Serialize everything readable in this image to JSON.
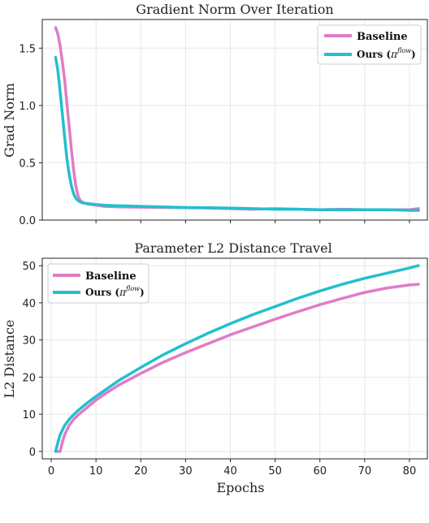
{
  "colors": {
    "baseline": "#e07cc6",
    "ours": "#22bfcf"
  },
  "chart_data": [
    {
      "type": "line",
      "title": "Gradient Norm Over Iteration",
      "xlabel": "",
      "ylabel": "Grad Norm",
      "xlim": [
        -2,
        84
      ],
      "ylim": [
        0,
        1.75
      ],
      "xticks": [
        10,
        20,
        30,
        40,
        50,
        60,
        70,
        80
      ],
      "xticklabels_visible": false,
      "yticks": [
        0.0,
        0.5,
        1.0,
        1.5
      ],
      "yticklabels": [
        "0.0",
        "0.5",
        "1.0",
        "1.5"
      ],
      "legend_position": "top-right",
      "grid": true,
      "series": [
        {
          "name": "Baseline",
          "color_key": "baseline",
          "x": [
            1,
            1.5,
            2,
            2.5,
            3,
            3.5,
            4,
            4.5,
            5,
            5.5,
            6,
            6.5,
            7,
            8,
            9,
            10,
            12,
            15,
            20,
            25,
            30,
            35,
            40,
            45,
            50,
            55,
            60,
            65,
            70,
            75,
            80,
            82
          ],
          "y": [
            1.68,
            1.62,
            1.52,
            1.38,
            1.22,
            1.02,
            0.82,
            0.62,
            0.44,
            0.3,
            0.21,
            0.17,
            0.155,
            0.14,
            0.135,
            0.13,
            0.12,
            0.115,
            0.113,
            0.11,
            0.108,
            0.105,
            0.1,
            0.095,
            0.1,
            0.095,
            0.09,
            0.095,
            0.09,
            0.09,
            0.09,
            0.1
          ]
        },
        {
          "name": "Ours (πᶠˡᵒʷ)",
          "color_key": "ours",
          "x": [
            1,
            1.5,
            2,
            2.5,
            3,
            3.5,
            4,
            4.5,
            5,
            5.5,
            6,
            6.5,
            7,
            8,
            9,
            10,
            12,
            15,
            20,
            25,
            30,
            35,
            40,
            45,
            50,
            55,
            60,
            65,
            70,
            75,
            80,
            82
          ],
          "y": [
            1.42,
            1.3,
            1.12,
            0.92,
            0.72,
            0.54,
            0.4,
            0.3,
            0.23,
            0.19,
            0.17,
            0.158,
            0.15,
            0.145,
            0.14,
            0.135,
            0.13,
            0.125,
            0.12,
            0.115,
            0.11,
            0.108,
            0.105,
            0.1,
            0.095,
            0.095,
            0.09,
            0.09,
            0.09,
            0.09,
            0.085,
            0.085
          ]
        }
      ]
    },
    {
      "type": "line",
      "title": "Parameter L2 Distance Travel",
      "xlabel": "Epochs",
      "ylabel": "L2 Distance",
      "xlim": [
        -2,
        84
      ],
      "ylim": [
        -2,
        52
      ],
      "xticks": [
        0,
        10,
        20,
        30,
        40,
        50,
        60,
        70,
        80
      ],
      "xticklabels": [
        "0",
        "10",
        "20",
        "30",
        "40",
        "50",
        "60",
        "70",
        "80"
      ],
      "yticks": [
        0,
        10,
        20,
        30,
        40,
        50
      ],
      "yticklabels": [
        "0",
        "10",
        "20",
        "30",
        "40",
        "50"
      ],
      "legend_position": "top-left",
      "grid": true,
      "series": [
        {
          "name": "Baseline",
          "color_key": "baseline",
          "x": [
            1,
            2,
            2.5,
            3,
            4,
            5,
            6,
            8,
            10,
            12,
            15,
            20,
            25,
            30,
            35,
            40,
            45,
            50,
            55,
            60,
            65,
            70,
            75,
            80,
            82
          ],
          "y": [
            0,
            0,
            2.5,
            4.5,
            7.0,
            8.6,
            9.8,
            11.8,
            13.8,
            15.5,
            17.8,
            21.0,
            24.0,
            26.6,
            29.0,
            31.4,
            33.5,
            35.6,
            37.6,
            39.5,
            41.2,
            42.8,
            44.0,
            44.8,
            45.0
          ]
        },
        {
          "name": "Ours (πᶠˡᵒʷ)",
          "color_key": "ours",
          "x": [
            1,
            1.5,
            2,
            3,
            4,
            5,
            6,
            8,
            10,
            12,
            15,
            20,
            25,
            30,
            35,
            40,
            45,
            50,
            55,
            60,
            65,
            70,
            75,
            80,
            82
          ],
          "y": [
            0,
            2.5,
            4.5,
            7.0,
            8.6,
            9.9,
            11.0,
            13.0,
            14.8,
            16.5,
            19.0,
            22.6,
            26.0,
            29.0,
            31.8,
            34.4,
            36.8,
            39.0,
            41.2,
            43.2,
            45.0,
            46.6,
            48.0,
            49.4,
            50.0
          ]
        }
      ]
    }
  ],
  "legend": {
    "baseline_label": "Baseline",
    "ours_label": "Ours (",
    "ours_pi": "π",
    "ours_sup": "flow",
    "ours_close": ")"
  }
}
